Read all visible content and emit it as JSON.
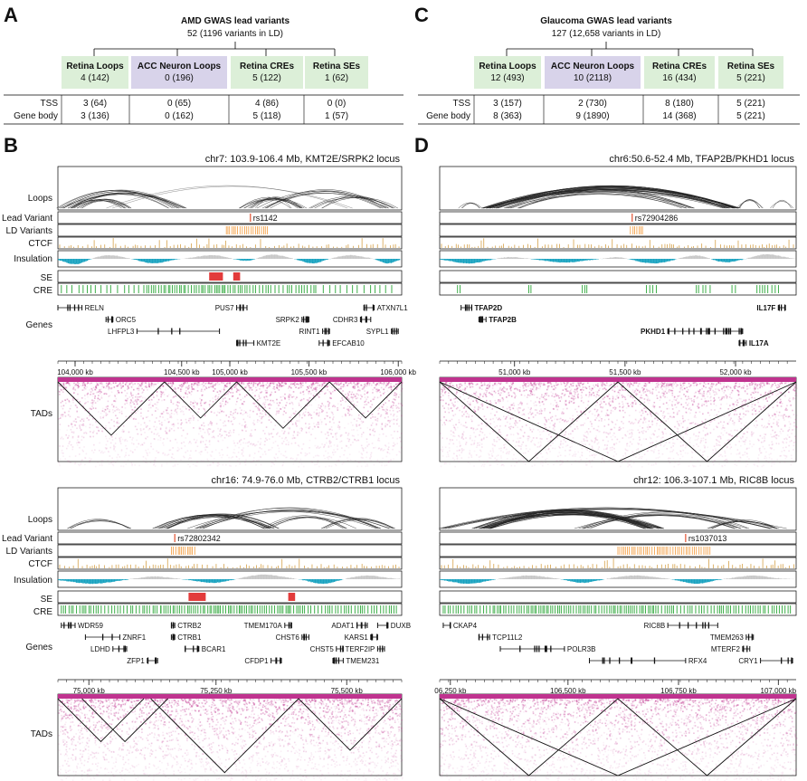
{
  "panels": {
    "A": {
      "letter": "A",
      "title": "AMD GWAS lead variants",
      "subtitle": "52 (1196 variants in LD)",
      "columns": [
        {
          "name": "Retina Loops",
          "total": "4 (142)",
          "tss": "3 (64)",
          "gene_body": "3 (136)"
        },
        {
          "name": "ACC Neuron Loops",
          "total": "0 (196)",
          "tss": "0 (65)",
          "gene_body": "0 (162)"
        },
        {
          "name": "Retina CREs",
          "total": "5 (122)",
          "tss": "4 (86)",
          "gene_body": "5 (118)"
        },
        {
          "name": "Retina SEs",
          "total": "1 (62)",
          "tss": "0 (0)",
          "gene_body": "1 (57)"
        }
      ],
      "row_labels": {
        "tss": "TSS",
        "gene_body": "Gene body"
      }
    },
    "C": {
      "letter": "C",
      "title": "Glaucoma GWAS lead variants",
      "subtitle": "127 (12,658 variants in LD)",
      "columns": [
        {
          "name": "Retina Loops",
          "total": "12 (493)",
          "tss": "3 (157)",
          "gene_body": "8 (363)"
        },
        {
          "name": "ACC Neuron Loops",
          "total": "10 (2118)",
          "tss": "2 (730)",
          "gene_body": "9 (1890)"
        },
        {
          "name": "Retina CREs",
          "total": "16 (434)",
          "tss": "8 (180)",
          "gene_body": "14 (368)"
        },
        {
          "name": "Retina SEs",
          "total": "5 (221)",
          "tss": "5 (221)",
          "gene_body": "5 (221)"
        }
      ],
      "row_labels": {
        "tss": "TSS",
        "gene_body": "Gene body"
      }
    },
    "B": {
      "letter": "B"
    },
    "D": {
      "letter": "D"
    }
  },
  "track_labels": {
    "loops": "Loops",
    "lead_variant": "Lead Variant",
    "ld_variants": "LD Variants",
    "ctcf": "CTCF",
    "insulation": "Insulation",
    "se": "SE",
    "cre": "CRE",
    "genes": "Genes",
    "tads": "TADs"
  },
  "loci": {
    "b_top": {
      "title": "chr7: 103.9-106.4 Mb, KMT2E/SRPK2 locus",
      "lead_variant": "rs1142",
      "ticks": [
        "104,000 kb",
        "104,500 kb",
        "105,000 kb",
        "105,500 kb",
        "106,000 kb"
      ],
      "genes": [
        "RELN",
        "ORC5",
        "LHFPL3",
        "PUS7",
        "SRPK2",
        "RINT1",
        "KMT2E",
        "EFCAB10",
        "ATXN7L1",
        "CDHR3",
        "SYPL1"
      ]
    },
    "d_top": {
      "title": "chr6:50.6-52.4 Mb, TFAP2B/PKHD1 locus",
      "lead_variant": "rs72904286",
      "ticks": [
        "51,000 kb",
        "51,500 kb",
        "52,000 kb"
      ],
      "genes": [
        "TFAP2D",
        "TFAP2B",
        "PKHD1",
        "IL17F",
        "IL17A"
      ]
    },
    "b_bot": {
      "title": "chr16: 74.9-76.0 Mb, CTRB2/CTRB1 locus",
      "lead_variant": "rs72802342",
      "ticks": [
        "75,000 kb",
        "75,250 kb",
        "75,500 kb"
      ],
      "genes": [
        "WDR59",
        "ZNRF1",
        "LDHD",
        "ZFP1",
        "CTRB2",
        "CTRB1",
        "BCAR1",
        "TMEM170A",
        "CHST6",
        "CFDP1",
        "CHST5",
        "ADAT1",
        "KARS1",
        "TERF2IP",
        "TMEM231",
        "DUXB"
      ]
    },
    "d_bot": {
      "title": "chr12: 106.3-107.1 Mb, RIC8B locus",
      "lead_variant": "rs1037013",
      "ticks": [
        "06,250 kb",
        "106,500 kb",
        "106,750 kb",
        "107,000 kb"
      ],
      "genes": [
        "CKAP4",
        "TCP11L2",
        "POLR3B",
        "RIC8B",
        "RFX4",
        "TMEM263",
        "MTERF2",
        "CRY1"
      ]
    }
  },
  "colors": {
    "green_box": "#dcefd8",
    "purple_box": "#d8d3ea",
    "ld_orange": "#f39a3a",
    "lead_red": "#e2502f",
    "ctcf": "#d6a24a",
    "insulation_gray": "#c8c8c8",
    "insulation_cyan": "#1aa3c0",
    "se_red": "#e23b3b",
    "cre_green": "#3fae4a",
    "hic_magenta": "#c0338f"
  }
}
